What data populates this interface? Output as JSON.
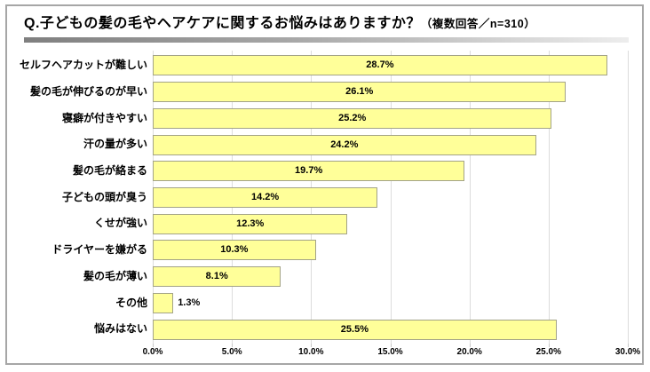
{
  "header": {
    "title_main": "Q.子どもの髪の毛やヘアケアに関するお悩みはありますか？",
    "title_note": "（複数回答／n=310）"
  },
  "chart_data": {
    "type": "bar",
    "orientation": "horizontal",
    "title": "Q.子どもの髪の毛やヘアケアに関するお悩みはありますか？（複数回答／n=310）",
    "categories": [
      "セルフヘアカットが難しい",
      "髪の毛が伸びるのが早い",
      "寝癖が付きやすい",
      "汗の量が多い",
      "髪の毛が絡まる",
      "子どもの頭が臭う",
      "くせが強い",
      "ドライヤーを嫌がる",
      "髪の毛が薄い",
      "その他",
      "悩みはない"
    ],
    "values": [
      28.7,
      26.1,
      25.2,
      24.2,
      19.7,
      14.2,
      12.3,
      10.3,
      8.1,
      1.3,
      25.5
    ],
    "value_labels": [
      "28.7%",
      "26.1%",
      "25.2%",
      "24.2%",
      "19.7%",
      "14.2%",
      "12.3%",
      "10.3%",
      "8.1%",
      "1.3%",
      "25.5%"
    ],
    "x_ticks": [
      "0.0%",
      "5.0%",
      "10.0%",
      "15.0%",
      "20.0%",
      "25.0%",
      "30.0%"
    ],
    "x_tick_values": [
      0,
      5,
      10,
      15,
      20,
      25,
      30
    ],
    "xlim": [
      0,
      30
    ],
    "grid": true,
    "legend": "none",
    "bar_color": "#ffff99",
    "bar_border_color": "#a3a387",
    "gridline_color": "#dcdcdc",
    "label_color": "#000000"
  }
}
